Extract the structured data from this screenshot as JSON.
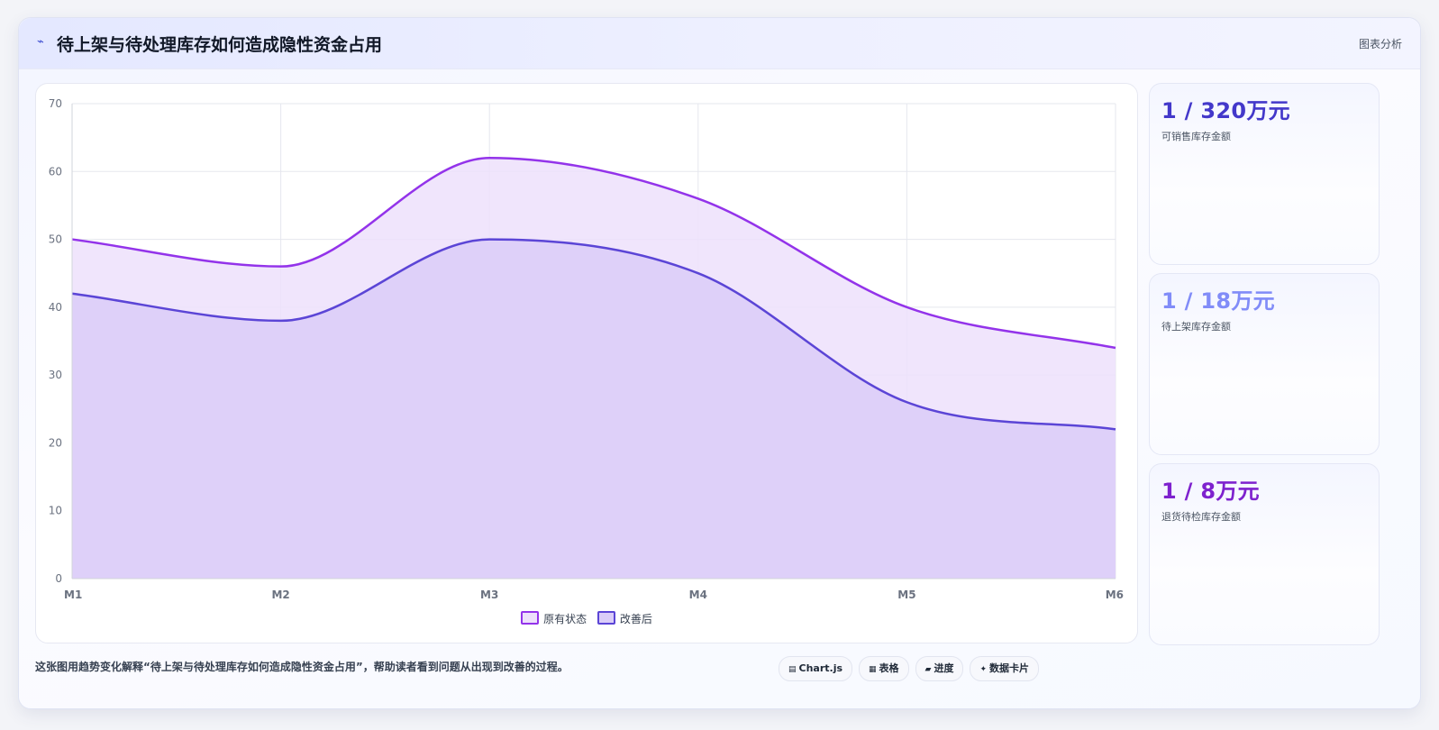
{
  "header": {
    "icon": "trend-icon",
    "title": "待上架与待处理库存如何造成隐性资金占用",
    "tag": "图表分析"
  },
  "stats": [
    {
      "value": "1 / 320万元",
      "label": "可销售库存金额",
      "color": "#4338ca"
    },
    {
      "value": "1 / 18万元",
      "label": "待上架库存金额",
      "color": "#818cf8"
    },
    {
      "value": "1 / 8万元",
      "label": "退货待检库存金额",
      "color": "#7e22ce"
    }
  ],
  "caption": "这张图用趋势变化解释“待上架与待处理库存如何造成隐性资金占用”，帮助读者看到问题从出现到改善的过程。",
  "pills": [
    {
      "icon": "chart-icon",
      "glyph": "▤",
      "label": "Chart.js"
    },
    {
      "icon": "table-icon",
      "glyph": "▦",
      "label": "表格"
    },
    {
      "icon": "progress-icon",
      "glyph": "▰",
      "label": "进度"
    },
    {
      "icon": "cards-icon",
      "glyph": "✦",
      "label": "数据卡片"
    }
  ],
  "legend": [
    "原有状态",
    "改善后"
  ],
  "chart_data": {
    "type": "area",
    "x": [
      "M1",
      "M2",
      "M3",
      "M4",
      "M5",
      "M6"
    ],
    "series": [
      {
        "name": "原有状态",
        "values": [
          50,
          46,
          62,
          56,
          40,
          34
        ],
        "color": "#9333ea",
        "fill": "#ede0fb"
      },
      {
        "name": "改善后",
        "values": [
          42,
          38,
          50,
          45,
          26,
          22
        ],
        "color": "#5b45d6",
        "fill": "#dacdf8"
      }
    ],
    "ylim": [
      0,
      70
    ],
    "yticks": [
      0,
      10,
      20,
      30,
      40,
      50,
      60,
      70
    ],
    "grid": true,
    "legend_position": "bottom"
  }
}
